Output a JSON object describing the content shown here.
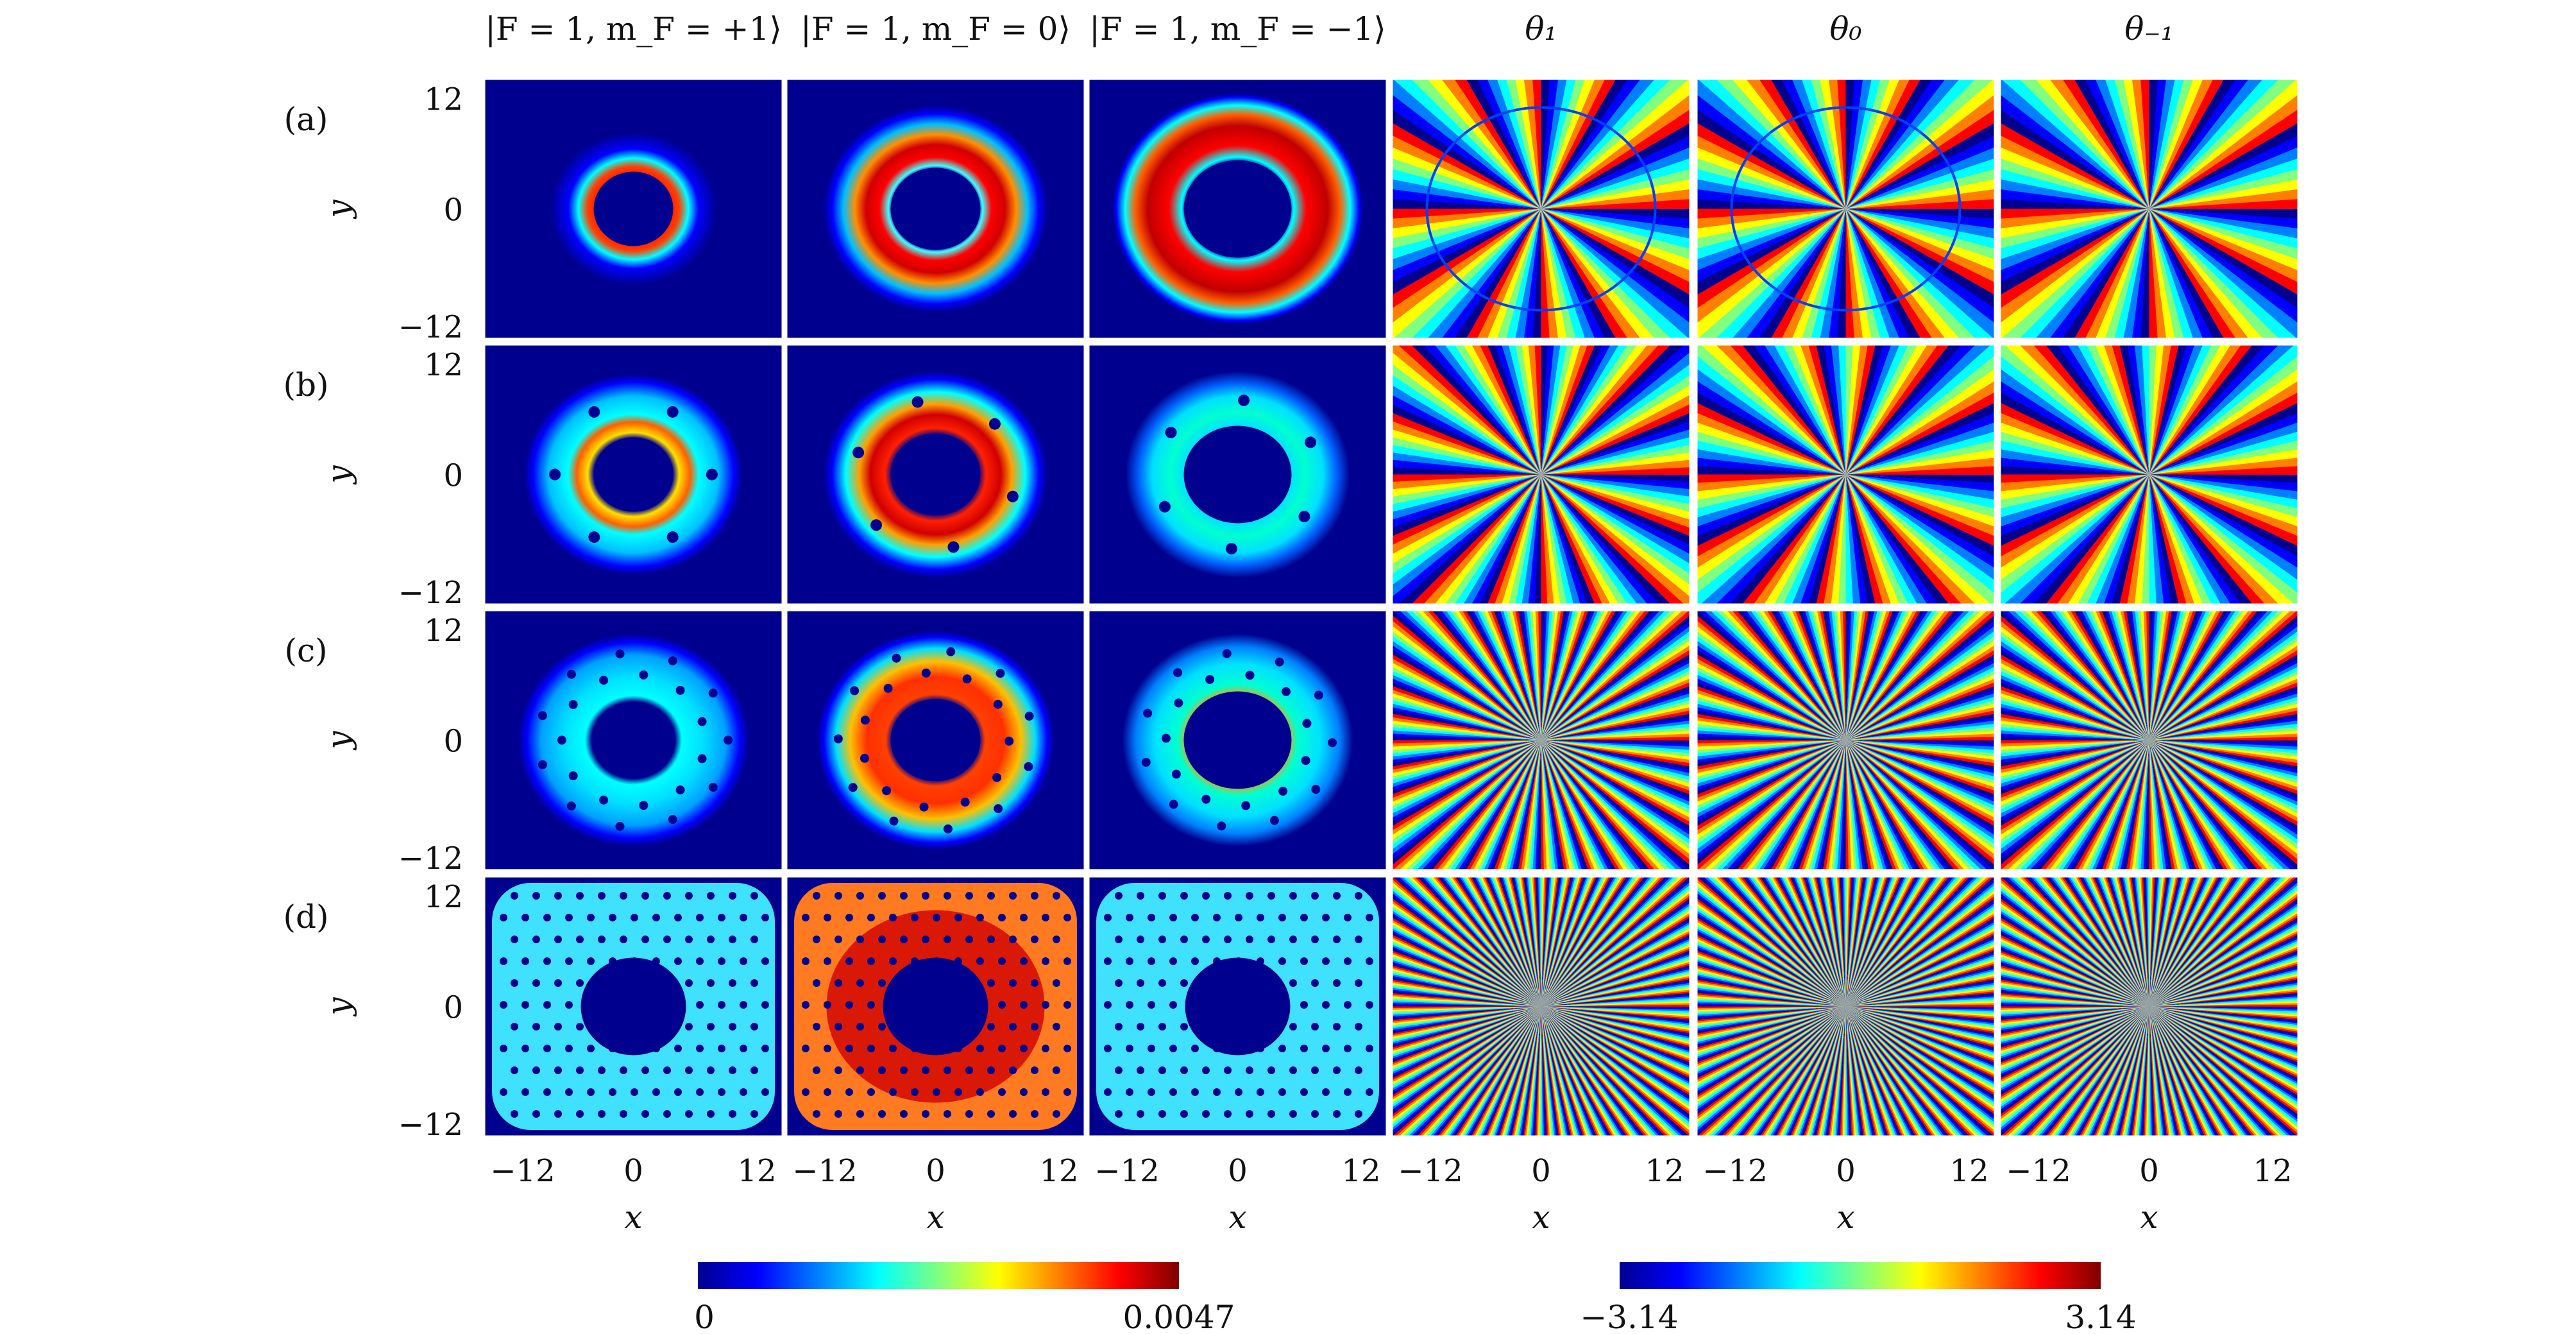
{
  "chart_data": {
    "type": "heatmap",
    "columns": [
      "|F = 1, m_F = +1⟩",
      "|F = 1, m_F = 0⟩",
      "|F = 1, m_F = −1⟩",
      "θ₁",
      "θ₀",
      "θ₋₁"
    ],
    "rows": [
      "(a)",
      "(b)",
      "(c)",
      "(d)"
    ],
    "xlabel": "x",
    "ylabel": "y",
    "x_ticks": [
      "−12",
      "0",
      "12"
    ],
    "y_ticks": [
      "12",
      "0",
      "−12"
    ],
    "xlim": [
      -12,
      12
    ],
    "ylim": [
      -12,
      12
    ],
    "density_colorbar": {
      "min_label": "0",
      "max_label": "0.0047",
      "min": 0,
      "max": 0.0047
    },
    "phase_colorbar": {
      "min_label": "−3.14",
      "max_label": "3.14",
      "min": -3.14,
      "max": 3.14
    },
    "colormap": [
      "#00008f",
      "#0000ff",
      "#0080ff",
      "#00ffff",
      "#80ff80",
      "#ffff00",
      "#ff8000",
      "#ff0000",
      "#800000"
    ],
    "density_background": "#00008f",
    "panel_content": {
      "(a)": {
        "density": "annular rings, no vortices",
        "phase_radial_bands": [
          12,
          12,
          12
        ]
      },
      "(b)": {
        "density": "ring with 5–6 vortices",
        "phase_radial_bands": [
          16,
          14,
          14
        ]
      },
      "(c)": {
        "density": "ring with vortex lattice",
        "phase_radial_bands": [
          36,
          36,
          36
        ]
      },
      "(d)": {
        "density": "dense vortex lattice",
        "phase_radial_bands": [
          70,
          70,
          70
        ]
      }
    }
  }
}
